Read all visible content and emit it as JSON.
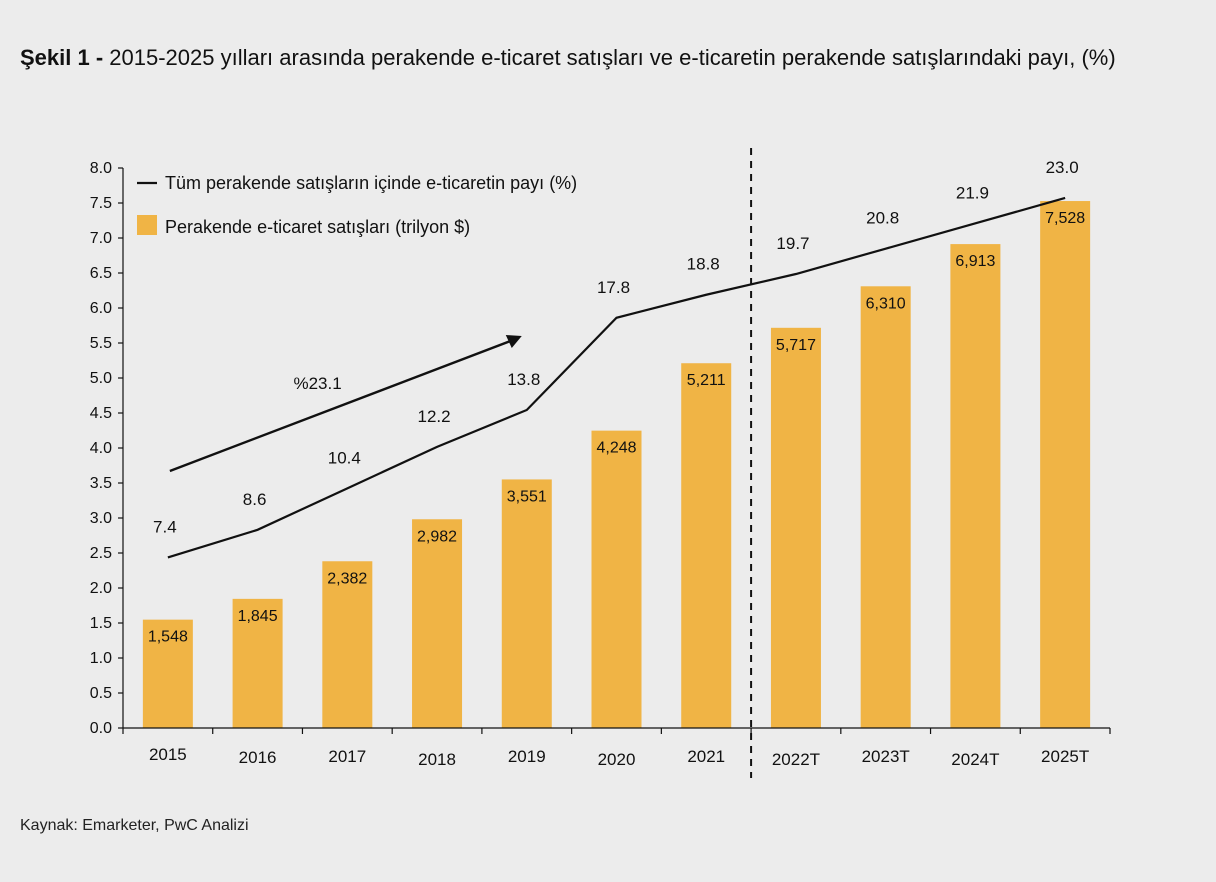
{
  "figure": {
    "label": "Şekil 1 -",
    "title": "2015-2025 yılları arasında perakende e-ticaret satışları ve e-ticaretin perakende satışlarındaki payı, (%)",
    "source": "Kaynak: Emarketer, PwC Analizi"
  },
  "colors": {
    "bar": "#f0b445",
    "line": "#111111",
    "background": "#ececec"
  },
  "chart_data": {
    "type": "bar",
    "categories": [
      "2015",
      "2016",
      "2017",
      "2018",
      "2019",
      "2020",
      "2021",
      "2022T",
      "2023T",
      "2024T",
      "2025T"
    ],
    "series": [
      {
        "name": "Perakende e-ticaret satışları (trilyon $)",
        "type": "bar",
        "values": [
          1.548,
          1.845,
          2.382,
          2.982,
          3.551,
          4.248,
          5.211,
          5.717,
          6.31,
          6.913,
          7.528
        ],
        "labels": [
          "1,548",
          "1,845",
          "2,382",
          "2,982",
          "3,551",
          "4,248",
          "5,211",
          "5,717",
          "6,310",
          "6,913",
          "7,528"
        ]
      },
      {
        "name": "Tüm perakende satışların içinde e-ticaretin payı (%)",
        "type": "line",
        "values": [
          7.4,
          8.6,
          10.4,
          12.2,
          13.8,
          17.8,
          18.8,
          19.7,
          20.8,
          21.9,
          23.0
        ],
        "labels": [
          "7.4",
          "8.6",
          "10.4",
          "12.2",
          "13.8",
          "17.8",
          "18.8",
          "19.7",
          "20.8",
          "21.9",
          "23.0"
        ]
      }
    ],
    "ylim": [
      0,
      8
    ],
    "yticks": [
      "0.0",
      "0.5",
      "1.0",
      "1.5",
      "2.0",
      "2.5",
      "3.0",
      "3.5",
      "4.0",
      "4.5",
      "5.0",
      "5.5",
      "6.0",
      "6.5",
      "7.0",
      "7.5",
      "8.0"
    ],
    "legend": {
      "position": "top-left",
      "line_label": "Tüm perakende satışların içinde e-ticaretin payı (%)",
      "bar_label": "Perakende e-ticaret satışları (trilyon $)"
    },
    "forecast_divider_after": "2021",
    "growth_annotation": {
      "label": "%23.1",
      "from_category": "2015",
      "to_category": "2019"
    }
  }
}
